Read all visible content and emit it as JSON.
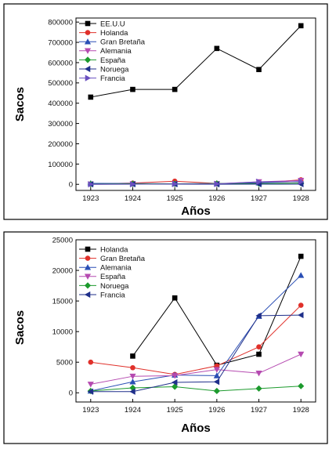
{
  "chart_data": [
    {
      "type": "line",
      "title": "",
      "xlabel": "Años",
      "ylabel": "Sacos",
      "x": [
        1923,
        1924,
        1925,
        1926,
        1927,
        1928
      ],
      "ylim": [
        -30000,
        820000
      ],
      "yticks": [
        0,
        100000,
        200000,
        300000,
        400000,
        500000,
        600000,
        700000,
        800000
      ],
      "ytick_labels": [
        "0",
        "100000",
        "200000",
        "300000",
        "400000",
        "500000",
        "600000",
        "700000",
        "800000"
      ],
      "legend_position": "top-left",
      "series": [
        {
          "name": "EE.U.U",
          "color": "#000000",
          "marker": "square",
          "values": [
            430000,
            468000,
            468000,
            670000,
            566000,
            782000
          ]
        },
        {
          "name": "Holanda",
          "color": "#e0302a",
          "marker": "circle",
          "values": [
            2000,
            6000,
            15500,
            4500,
            6300,
            22300
          ]
        },
        {
          "name": "Gran Bretaña",
          "color": "#2a4fb5",
          "marker": "triangle-up",
          "values": [
            5000,
            4100,
            3000,
            4400,
            7500,
            14300
          ]
        },
        {
          "name": "Alemania",
          "color": "#b54ab0",
          "marker": "triangle-down",
          "values": [
            300,
            1800,
            2900,
            2800,
            12500,
            19200
          ]
        },
        {
          "name": "España",
          "color": "#1c9a2d",
          "marker": "diamond",
          "values": [
            1400,
            2700,
            2800,
            3800,
            3200,
            6300
          ]
        },
        {
          "name": "Noruega",
          "color": "#1f2f8a",
          "marker": "triangle-left",
          "values": [
            300,
            800,
            1000,
            300,
            700,
            1100
          ]
        },
        {
          "name": "Francia",
          "color": "#6a4fc0",
          "marker": "triangle-right",
          "values": [
            200,
            200,
            1700,
            1800,
            12600,
            12700
          ]
        }
      ]
    },
    {
      "type": "line",
      "title": "",
      "xlabel": "Años",
      "ylabel": "Sacos",
      "x": [
        1923,
        1924,
        1925,
        1926,
        1927,
        1928
      ],
      "ylim": [
        -1500,
        25000
      ],
      "yticks": [
        0,
        5000,
        10000,
        15000,
        20000,
        25000
      ],
      "ytick_labels": [
        "0",
        "5000",
        "10000",
        "15000",
        "20000",
        "25000"
      ],
      "legend_position": "top-left",
      "series": [
        {
          "name": "Holanda",
          "color": "#000000",
          "marker": "square",
          "values": [
            null,
            6000,
            15500,
            4500,
            6300,
            22300
          ]
        },
        {
          "name": "Gran Bretaña",
          "color": "#e0302a",
          "marker": "circle",
          "values": [
            5000,
            4100,
            3000,
            4400,
            7500,
            14300
          ]
        },
        {
          "name": "Alemania",
          "color": "#2a4fb5",
          "marker": "triangle-up",
          "values": [
            300,
            1800,
            2900,
            2800,
            12500,
            19200
          ]
        },
        {
          "name": "España",
          "color": "#b54ab0",
          "marker": "triangle-down",
          "values": [
            1400,
            2700,
            2800,
            3800,
            3200,
            6300
          ]
        },
        {
          "name": "Noruega",
          "color": "#1c9a2d",
          "marker": "diamond",
          "values": [
            300,
            800,
            1000,
            300,
            700,
            1100
          ]
        },
        {
          "name": "Francia",
          "color": "#1f2f8a",
          "marker": "triangle-left",
          "values": [
            200,
            200,
            1700,
            1800,
            12600,
            12700
          ]
        }
      ]
    }
  ]
}
